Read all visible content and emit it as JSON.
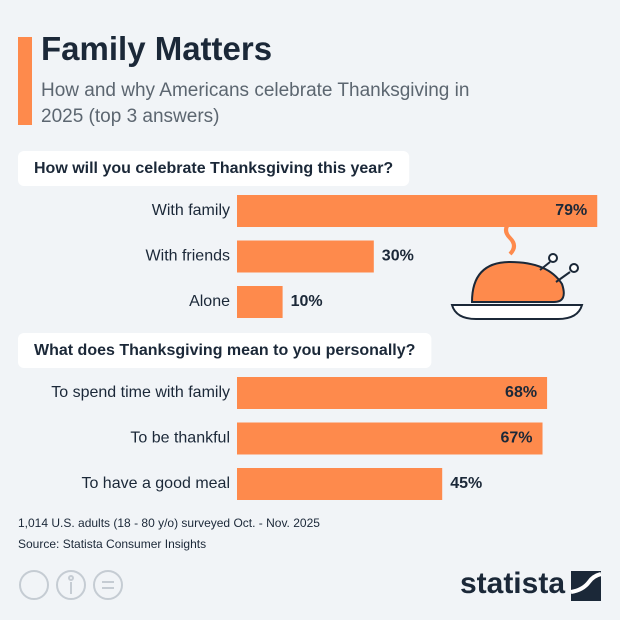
{
  "title": "Family Matters",
  "subtitle": "How and why Americans celebrate Thanksgiving in 2025 (top 3 answers)",
  "chart_data": [
    {
      "type": "bar",
      "title": "How will you celebrate Thanksgiving this year?",
      "categories": [
        "With family",
        "With friends",
        "Alone"
      ],
      "values": [
        79,
        30,
        10
      ],
      "value_labels": [
        "79%",
        "30%",
        "10%"
      ],
      "color": "#fe8a4c"
    },
    {
      "type": "bar",
      "title": "What does Thanksgiving mean to you personally?",
      "categories": [
        "To spend time with family",
        "To be thankful",
        "To have a good meal"
      ],
      "values": [
        68,
        67,
        45
      ],
      "value_labels": [
        "68%",
        "67%",
        "45%"
      ],
      "color": "#fe8a4c"
    }
  ],
  "footnote": "1,014 U.S. adults (18 - 80 y/o) surveyed Oct. - Nov. 2025",
  "source": "Source: Statista Consumer Insights",
  "logo": "statista"
}
